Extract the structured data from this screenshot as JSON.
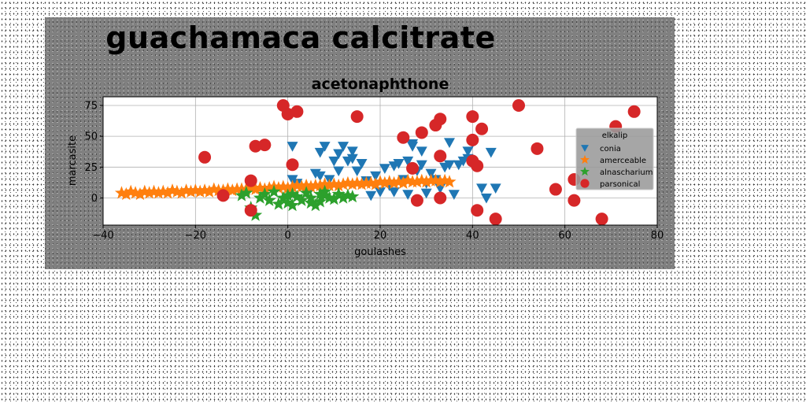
{
  "figure": {
    "suptitle": "guachamaca calcitrate"
  },
  "chart_data": {
    "type": "scatter",
    "title": "acetonaphthone",
    "xlabel": "goulashes",
    "ylabel": "marcasite",
    "xlim": [
      -40,
      80
    ],
    "ylim": [
      -22,
      82
    ],
    "x_ticks": [
      -40,
      -20,
      0,
      20,
      40,
      60,
      80
    ],
    "y_ticks": [
      0,
      25,
      50,
      75
    ],
    "grid": true,
    "legend": {
      "title": "elkalip",
      "placement": "right"
    },
    "colors": {
      "conia": "#1f77b4",
      "amerceable": "#ff7f0e",
      "alnascharium": "#2ca02c",
      "parsonical": "#d62728"
    },
    "series": [
      {
        "name": "conia",
        "marker": "triangle-down",
        "color": "#1f77b4",
        "points": [
          [
            1,
            42
          ],
          [
            1,
            15
          ],
          [
            2,
            12
          ],
          [
            5,
            8
          ],
          [
            6,
            20
          ],
          [
            7,
            18
          ],
          [
            7,
            37
          ],
          [
            8,
            42
          ],
          [
            9,
            15
          ],
          [
            10,
            30
          ],
          [
            11,
            22
          ],
          [
            11,
            36
          ],
          [
            12,
            42
          ],
          [
            13,
            30
          ],
          [
            14,
            32
          ],
          [
            14,
            38
          ],
          [
            15,
            22
          ],
          [
            16,
            28
          ],
          [
            17,
            14
          ],
          [
            18,
            2
          ],
          [
            19,
            18
          ],
          [
            20,
            5
          ],
          [
            21,
            24
          ],
          [
            22,
            10
          ],
          [
            23,
            26
          ],
          [
            23,
            5
          ],
          [
            24,
            28
          ],
          [
            25,
            15
          ],
          [
            26,
            3
          ],
          [
            26,
            30
          ],
          [
            27,
            42
          ],
          [
            27,
            44
          ],
          [
            28,
            22
          ],
          [
            29,
            38
          ],
          [
            29,
            27
          ],
          [
            30,
            12
          ],
          [
            30,
            4
          ],
          [
            31,
            20
          ],
          [
            32,
            15
          ],
          [
            33,
            8
          ],
          [
            34,
            25
          ],
          [
            35,
            27
          ],
          [
            35,
            45
          ],
          [
            36,
            3
          ],
          [
            37,
            27
          ],
          [
            38,
            30
          ],
          [
            39,
            32
          ],
          [
            39,
            38
          ],
          [
            40,
            45
          ],
          [
            42,
            8
          ],
          [
            43,
            0
          ],
          [
            44,
            37
          ],
          [
            45,
            8
          ]
        ]
      },
      {
        "name": "amerceable",
        "marker": "star",
        "color": "#ff7f0e",
        "points": [
          [
            -36,
            4
          ],
          [
            -35,
            3
          ],
          [
            -34,
            5
          ],
          [
            -33,
            4
          ],
          [
            -32,
            3
          ],
          [
            -31,
            5
          ],
          [
            -30,
            4
          ],
          [
            -29,
            5
          ],
          [
            -28,
            4
          ],
          [
            -27,
            5
          ],
          [
            -26,
            4
          ],
          [
            -25,
            6
          ],
          [
            -24,
            5
          ],
          [
            -23,
            4
          ],
          [
            -22,
            6
          ],
          [
            -21,
            5
          ],
          [
            -20,
            6
          ],
          [
            -19,
            5
          ],
          [
            -18,
            6
          ],
          [
            -17,
            5
          ],
          [
            -16,
            7
          ],
          [
            -15,
            6
          ],
          [
            -14,
            6
          ],
          [
            -13,
            7
          ],
          [
            -12,
            6
          ],
          [
            -11,
            7
          ],
          [
            -10,
            7
          ],
          [
            -9,
            7
          ],
          [
            -8,
            8
          ],
          [
            -7,
            7
          ],
          [
            -6,
            8
          ],
          [
            -5,
            7
          ],
          [
            -4,
            8
          ],
          [
            -3,
            9
          ],
          [
            -2,
            8
          ],
          [
            -1,
            9
          ],
          [
            0,
            8
          ],
          [
            1,
            9
          ],
          [
            2,
            10
          ],
          [
            3,
            9
          ],
          [
            4,
            10
          ],
          [
            5,
            9
          ],
          [
            6,
            10
          ],
          [
            7,
            10
          ],
          [
            8,
            11
          ],
          [
            9,
            10
          ],
          [
            10,
            11
          ],
          [
            11,
            10
          ],
          [
            12,
            11
          ],
          [
            13,
            12
          ],
          [
            14,
            11
          ],
          [
            15,
            12
          ],
          [
            16,
            11
          ],
          [
            17,
            12
          ],
          [
            18,
            12
          ],
          [
            19,
            11
          ],
          [
            20,
            13
          ],
          [
            21,
            12
          ],
          [
            22,
            13
          ],
          [
            23,
            12
          ],
          [
            24,
            13
          ],
          [
            25,
            12
          ],
          [
            26,
            14
          ],
          [
            27,
            13
          ],
          [
            28,
            13
          ],
          [
            29,
            14
          ],
          [
            30,
            13
          ],
          [
            31,
            14
          ],
          [
            32,
            14
          ],
          [
            33,
            13
          ],
          [
            34,
            14
          ],
          [
            35,
            13
          ]
        ]
      },
      {
        "name": "alnascharium",
        "marker": "star",
        "color": "#2ca02c",
        "points": [
          [
            -10,
            2
          ],
          [
            -9,
            4
          ],
          [
            -8,
            -8
          ],
          [
            -7,
            -14
          ],
          [
            -6,
            0
          ],
          [
            -5,
            3
          ],
          [
            -4,
            -2
          ],
          [
            -3,
            5
          ],
          [
            -2,
            -5
          ],
          [
            -1,
            0
          ],
          [
            0,
            2
          ],
          [
            0,
            -4
          ],
          [
            1,
            3
          ],
          [
            1,
            -6
          ],
          [
            2,
            1
          ],
          [
            3,
            -2
          ],
          [
            4,
            4
          ],
          [
            5,
            0
          ],
          [
            5,
            -4
          ],
          [
            6,
            -6
          ],
          [
            7,
            3
          ],
          [
            7,
            -3
          ],
          [
            8,
            2
          ],
          [
            8,
            5
          ],
          [
            9,
            0
          ],
          [
            10,
            -1
          ],
          [
            11,
            3
          ],
          [
            12,
            0
          ],
          [
            13,
            2
          ],
          [
            14,
            1
          ]
        ]
      },
      {
        "name": "parsonical",
        "marker": "circle",
        "color": "#d62728",
        "points": [
          [
            -18,
            33
          ],
          [
            -14,
            2
          ],
          [
            -8,
            -10
          ],
          [
            -8,
            14
          ],
          [
            -7,
            42
          ],
          [
            -5,
            43
          ],
          [
            -1,
            75
          ],
          [
            0,
            68
          ],
          [
            1,
            27
          ],
          [
            2,
            70
          ],
          [
            15,
            66
          ],
          [
            25,
            49
          ],
          [
            27,
            24
          ],
          [
            28,
            -2
          ],
          [
            29,
            53
          ],
          [
            32,
            59
          ],
          [
            33,
            64
          ],
          [
            33,
            34
          ],
          [
            33,
            0
          ],
          [
            40,
            66
          ],
          [
            40,
            47
          ],
          [
            40,
            30
          ],
          [
            41,
            26
          ],
          [
            41,
            -10
          ],
          [
            42,
            56
          ],
          [
            45,
            -17
          ],
          [
            50,
            75
          ],
          [
            54,
            40
          ],
          [
            58,
            7
          ],
          [
            62,
            -2
          ],
          [
            62,
            15
          ],
          [
            68,
            -17
          ],
          [
            71,
            58
          ],
          [
            75,
            70
          ]
        ]
      }
    ]
  }
}
